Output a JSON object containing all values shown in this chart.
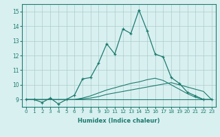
{
  "xlabel": "Humidex (Indice chaleur)",
  "x_values": [
    0,
    1,
    2,
    3,
    4,
    5,
    6,
    7,
    8,
    9,
    10,
    11,
    12,
    13,
    14,
    15,
    16,
    17,
    18,
    19,
    20,
    21,
    22,
    23
  ],
  "line1_y": [
    9.0,
    9.0,
    8.8,
    9.1,
    8.7,
    9.0,
    9.3,
    10.4,
    10.5,
    11.5,
    12.8,
    12.1,
    13.8,
    13.5,
    15.1,
    13.7,
    12.1,
    11.9,
    10.5,
    10.1,
    9.5,
    9.25,
    9.0,
    9.0
  ],
  "line2_y": [
    9.0,
    9.0,
    9.0,
    9.0,
    9.0,
    9.0,
    9.0,
    9.0,
    9.0,
    9.0,
    9.0,
    9.0,
    9.0,
    9.0,
    9.0,
    9.0,
    9.0,
    9.0,
    9.0,
    9.0,
    9.0,
    9.0,
    9.0,
    9.0
  ],
  "line3_y": [
    9.0,
    9.0,
    9.0,
    9.0,
    9.0,
    9.0,
    9.0,
    9.05,
    9.1,
    9.2,
    9.35,
    9.45,
    9.55,
    9.65,
    9.75,
    9.85,
    9.95,
    10.05,
    10.15,
    10.0,
    9.85,
    9.7,
    9.55,
    9.0
  ],
  "line4_y": [
    9.0,
    9.0,
    9.0,
    9.0,
    9.0,
    9.0,
    9.0,
    9.1,
    9.25,
    9.45,
    9.65,
    9.8,
    9.95,
    10.1,
    10.2,
    10.35,
    10.45,
    10.3,
    10.0,
    9.7,
    9.4,
    9.15,
    9.0,
    9.0
  ],
  "line_color": "#1a7a6e",
  "bg_color": "#d9f0f0",
  "grid_color": "#aacccc",
  "ylim": [
    8.5,
    15.5
  ],
  "xlim": [
    -0.5,
    23.5
  ],
  "yticks": [
    9,
    10,
    11,
    12,
    13,
    14,
    15
  ],
  "xticks": [
    0,
    1,
    2,
    3,
    4,
    5,
    6,
    7,
    8,
    9,
    10,
    11,
    12,
    13,
    14,
    15,
    16,
    17,
    18,
    19,
    20,
    21,
    22,
    23
  ]
}
